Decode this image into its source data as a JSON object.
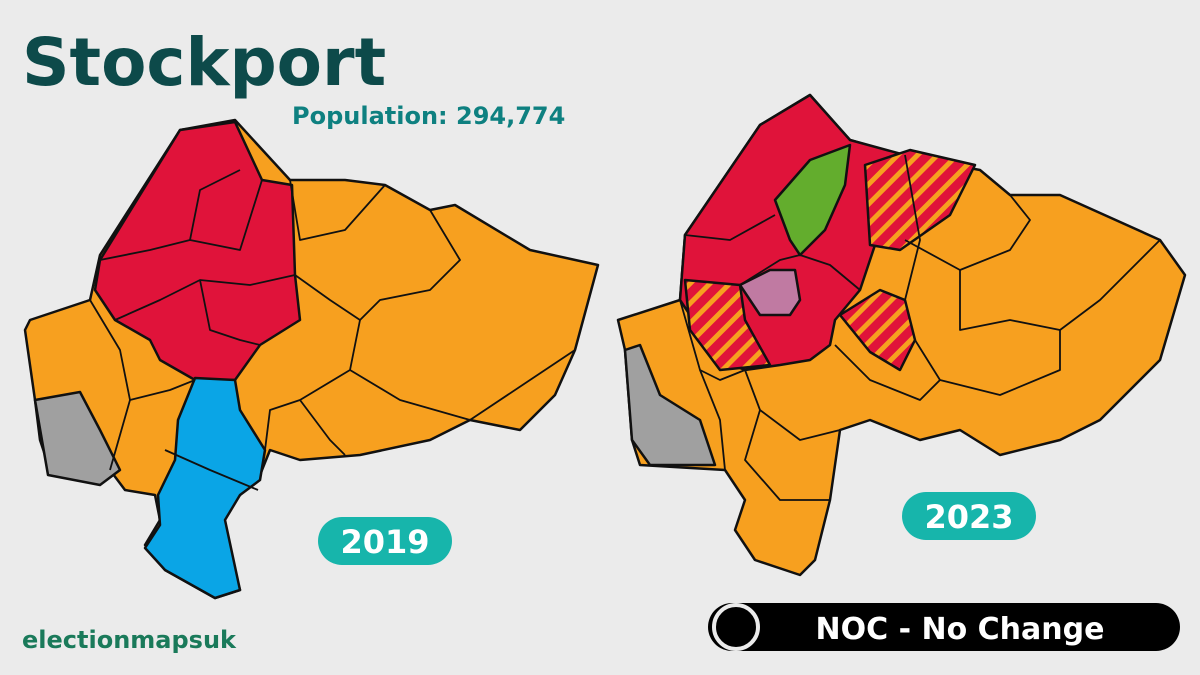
{
  "header": {
    "title": "Stockport",
    "subtitle": "Population: 294,774"
  },
  "maps": [
    {
      "year": "2019"
    },
    {
      "year": "2023"
    }
  ],
  "footer": {
    "credit": "electionmapsuk",
    "result": "NOC - No Change"
  }
}
